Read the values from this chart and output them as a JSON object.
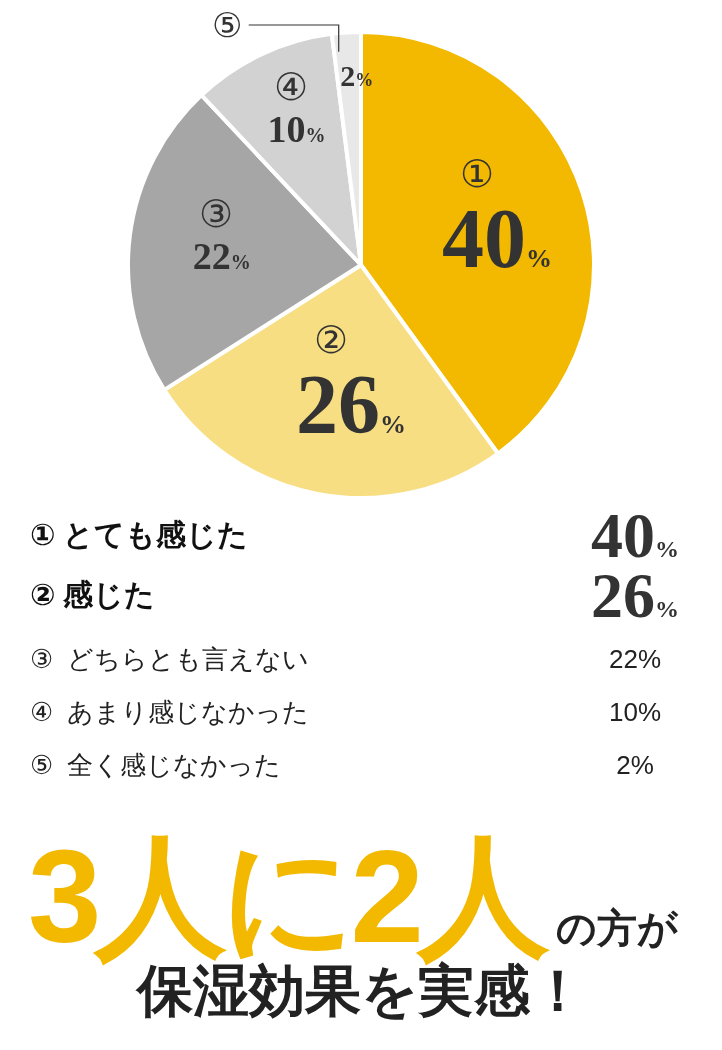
{
  "chart_data": {
    "type": "pie",
    "categories": [
      "①",
      "②",
      "③",
      "④",
      "⑤"
    ],
    "values": [
      40,
      26,
      22,
      10,
      2
    ],
    "value_labels": [
      "40%",
      "26%",
      "22%",
      "10%",
      "2%"
    ],
    "colors": [
      "#f2b900",
      "#f8de82",
      "#a6a6a6",
      "#d2d2d2",
      "#e8e8e8"
    ],
    "annotations": [
      "① とても感じた",
      "② 感じた",
      "③ どちらとも言えない",
      "④ あまり感じなかった",
      "⑤ 全く感じなかった",
      "3人に2人",
      "の方が",
      "保湿効果を実感！"
    ]
  }
}
